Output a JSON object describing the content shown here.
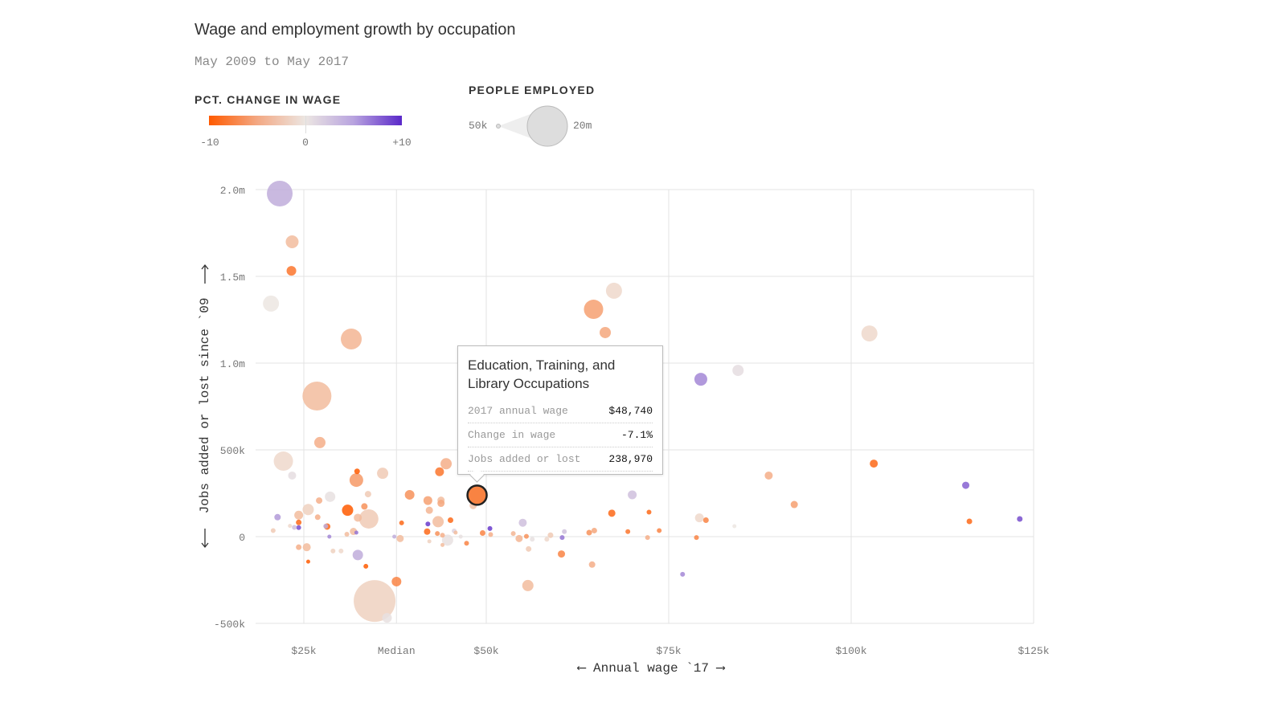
{
  "header": {
    "title": "Wage and employment growth by occupation",
    "subtitle": "May 2009 to May 2017"
  },
  "legend": {
    "color_title": "PCT. CHANGE IN WAGE",
    "color_ticks": [
      "-10",
      "0",
      "+10"
    ],
    "size_title": "PEOPLE EMPLOYED",
    "size_min": "50k",
    "size_max": "20m",
    "colors": {
      "neg": "#ff5a00",
      "mid": "#ece6e2",
      "pos": "#5a28c9"
    }
  },
  "tooltip": {
    "title": "Education, Training, and Library Occupations",
    "rows": [
      {
        "label": "2017 annual wage",
        "value": "$48,740"
      },
      {
        "label": "Change in wage",
        "value": "-7.1%"
      },
      {
        "label": "Jobs added or lost",
        "value": "238,970"
      }
    ]
  },
  "chart_data": {
    "type": "scatter",
    "title": "Wage and employment growth by occupation",
    "xlabel": "⟵ Annual wage `17 ⟶",
    "ylabel": "Jobs added or lost since `09",
    "xlim": [
      18,
      125
    ],
    "ylim": [
      -500,
      2000
    ],
    "x_units": "thousand USD",
    "y_units": "thousand jobs",
    "size_units": "thousand employed",
    "x_ticks": [
      {
        "v": 25,
        "label": "$25k"
      },
      {
        "v": 37.69,
        "label": "Median"
      },
      {
        "v": 50,
        "label": "$50k"
      },
      {
        "v": 75,
        "label": "$75k"
      },
      {
        "v": 100,
        "label": "$100k"
      },
      {
        "v": 125,
        "label": "$125k"
      }
    ],
    "y_ticks": [
      {
        "v": 2000,
        "label": "2.0m"
      },
      {
        "v": 1500,
        "label": "1.5m"
      },
      {
        "v": 1000,
        "label": "1.0m"
      },
      {
        "v": 500,
        "label": "500k"
      },
      {
        "v": 0,
        "label": "0"
      },
      {
        "v": -500,
        "label": "-500k"
      }
    ],
    "grid": true,
    "point_fields": [
      "wage",
      "jobs_change",
      "pct_wage_change",
      "employment"
    ],
    "highlighted": [
      48.74,
      238.97,
      -7.1,
      4608
    ],
    "points": [
      [
        21.7,
        1977,
        3,
        8192
      ],
      [
        23.4,
        1699,
        -3,
        2048
      ],
      [
        23.3,
        1532,
        -8,
        1152
      ],
      [
        20.5,
        1343,
        0,
        3200
      ],
      [
        31.5,
        1139,
        -3.5,
        5408
      ],
      [
        26.8,
        810,
        -3,
        10368
      ],
      [
        27.2,
        542,
        -4,
        1568
      ],
      [
        22.2,
        435,
        -1,
        4608
      ],
      [
        23.4,
        352,
        0.5,
        800
      ],
      [
        64.7,
        1310,
        -5,
        4608
      ],
      [
        67.5,
        1417,
        -1,
        3200
      ],
      [
        66.3,
        1176,
        -4.5,
        1568
      ],
      [
        102.5,
        1171,
        -1,
        3200
      ],
      [
        79.4,
        907,
        5,
        2048
      ],
      [
        84.5,
        958,
        0.5,
        1568
      ],
      [
        103.1,
        421,
        -9,
        800
      ],
      [
        88.7,
        352,
        -4,
        800
      ],
      [
        92.2,
        185,
        -5,
        648
      ],
      [
        115.7,
        296,
        7,
        648
      ],
      [
        116.2,
        88,
        -9,
        392
      ],
      [
        123.1,
        102,
        8,
        392
      ],
      [
        34.7,
        -371,
        -1.5,
        21632
      ],
      [
        36.4,
        -468,
        0.3,
        1152
      ],
      [
        37.7,
        -259,
        -7,
        1152
      ],
      [
        55.7,
        -282,
        -3,
        1568
      ],
      [
        32.3,
        376,
        -10,
        392
      ],
      [
        32.2,
        326,
        -5.5,
        2312
      ],
      [
        35.8,
        365,
        -2,
        1568
      ],
      [
        33.8,
        245,
        -2,
        512
      ],
      [
        28.6,
        230,
        0.3,
        1352
      ],
      [
        27.1,
        208,
        -4,
        512
      ],
      [
        25.6,
        156,
        -1.5,
        1568
      ],
      [
        24.3,
        124,
        -3,
        968
      ],
      [
        31,
        152,
        -10,
        1568
      ],
      [
        33.3,
        174,
        -6,
        512
      ],
      [
        33.9,
        102,
        -2,
        4608
      ],
      [
        32.4,
        109,
        -3,
        800
      ],
      [
        26.9,
        112,
        -4,
        392
      ],
      [
        21.4,
        112,
        4,
        512
      ],
      [
        24.3,
        82,
        -9,
        392
      ],
      [
        24.3,
        52,
        8,
        288
      ],
      [
        23.7,
        53,
        2,
        288
      ],
      [
        23.1,
        62,
        -1,
        200
      ],
      [
        20.8,
        35,
        -2,
        288
      ],
      [
        28.2,
        58,
        -9,
        512
      ],
      [
        28,
        60,
        3,
        288
      ],
      [
        31.8,
        30,
        -3,
        648
      ],
      [
        32.2,
        23,
        6,
        200
      ],
      [
        30.9,
        14,
        -3,
        288
      ],
      [
        28.5,
        0,
        5,
        200
      ],
      [
        37.4,
        0,
        3,
        200
      ],
      [
        38.2,
        -11,
        -3,
        648
      ],
      [
        24.3,
        -61,
        -4,
        392
      ],
      [
        25.4,
        -61,
        -3,
        800
      ],
      [
        29,
        -83,
        -1.5,
        288
      ],
      [
        30.1,
        -83,
        -1,
        288
      ],
      [
        32.4,
        -106,
        3,
        1352
      ],
      [
        25.6,
        -144,
        -10,
        200
      ],
      [
        33.5,
        -171,
        -10,
        288
      ],
      [
        39.5,
        241,
        -6,
        1152
      ],
      [
        42,
        208,
        -5,
        968
      ],
      [
        43.6,
        374,
        -8,
        968
      ],
      [
        44.5,
        420,
        -4,
        1568
      ],
      [
        43.8,
        210,
        -3,
        648
      ],
      [
        43.8,
        192,
        -4.5,
        648
      ],
      [
        42.2,
        152,
        -3.5,
        648
      ],
      [
        43.4,
        86,
        -3,
        1568
      ],
      [
        45.1,
        95,
        -9,
        392
      ],
      [
        42,
        73,
        9,
        288
      ],
      [
        41.9,
        29,
        -9,
        512
      ],
      [
        38.4,
        79,
        -9,
        288
      ],
      [
        43.3,
        18,
        -6,
        288
      ],
      [
        44,
        8,
        -4,
        288
      ],
      [
        44.7,
        -20,
        0.3,
        1568
      ],
      [
        45.6,
        33,
        1,
        288
      ],
      [
        45.8,
        23,
        -3,
        200
      ],
      [
        46.5,
        0,
        0.3,
        200
      ],
      [
        42.2,
        -27,
        -1.5,
        200
      ],
      [
        44,
        -48,
        -3,
        200
      ],
      [
        48.2,
        179,
        -2.5,
        648
      ],
      [
        50.5,
        47,
        9,
        288
      ],
      [
        49.5,
        21,
        -7,
        392
      ],
      [
        50.6,
        12,
        -4,
        288
      ],
      [
        47.3,
        -38,
        -7,
        288
      ],
      [
        55,
        80,
        2,
        800
      ],
      [
        53.7,
        18,
        -3.5,
        288
      ],
      [
        54.5,
        -11,
        -3.5,
        648
      ],
      [
        55.5,
        2,
        -6,
        288
      ],
      [
        56.3,
        -15,
        0.3,
        288
      ],
      [
        55.8,
        -71,
        -2,
        392
      ],
      [
        58.8,
        8,
        -2,
        392
      ],
      [
        58.3,
        -15,
        -1,
        288
      ],
      [
        60.7,
        29,
        2,
        288
      ],
      [
        60.4,
        -5,
        6,
        288
      ],
      [
        60.3,
        -100,
        -7,
        648
      ],
      [
        64.1,
        23,
        -6,
        392
      ],
      [
        64.8,
        35,
        -4.5,
        392
      ],
      [
        64.5,
        -161,
        -4,
        512
      ],
      [
        67.2,
        135,
        -9,
        648
      ],
      [
        70,
        241,
        2,
        968
      ],
      [
        69.4,
        29,
        -8,
        288
      ],
      [
        72.3,
        141,
        -9,
        288
      ],
      [
        72.1,
        -5,
        -4,
        288
      ],
      [
        73.7,
        35,
        -7,
        288
      ],
      [
        76.9,
        -217,
        5,
        288
      ],
      [
        79.2,
        108,
        -1,
        968
      ],
      [
        80.1,
        95,
        -7,
        392
      ],
      [
        78.8,
        -5,
        -7,
        288
      ],
      [
        84,
        60,
        0,
        200
      ]
    ]
  }
}
